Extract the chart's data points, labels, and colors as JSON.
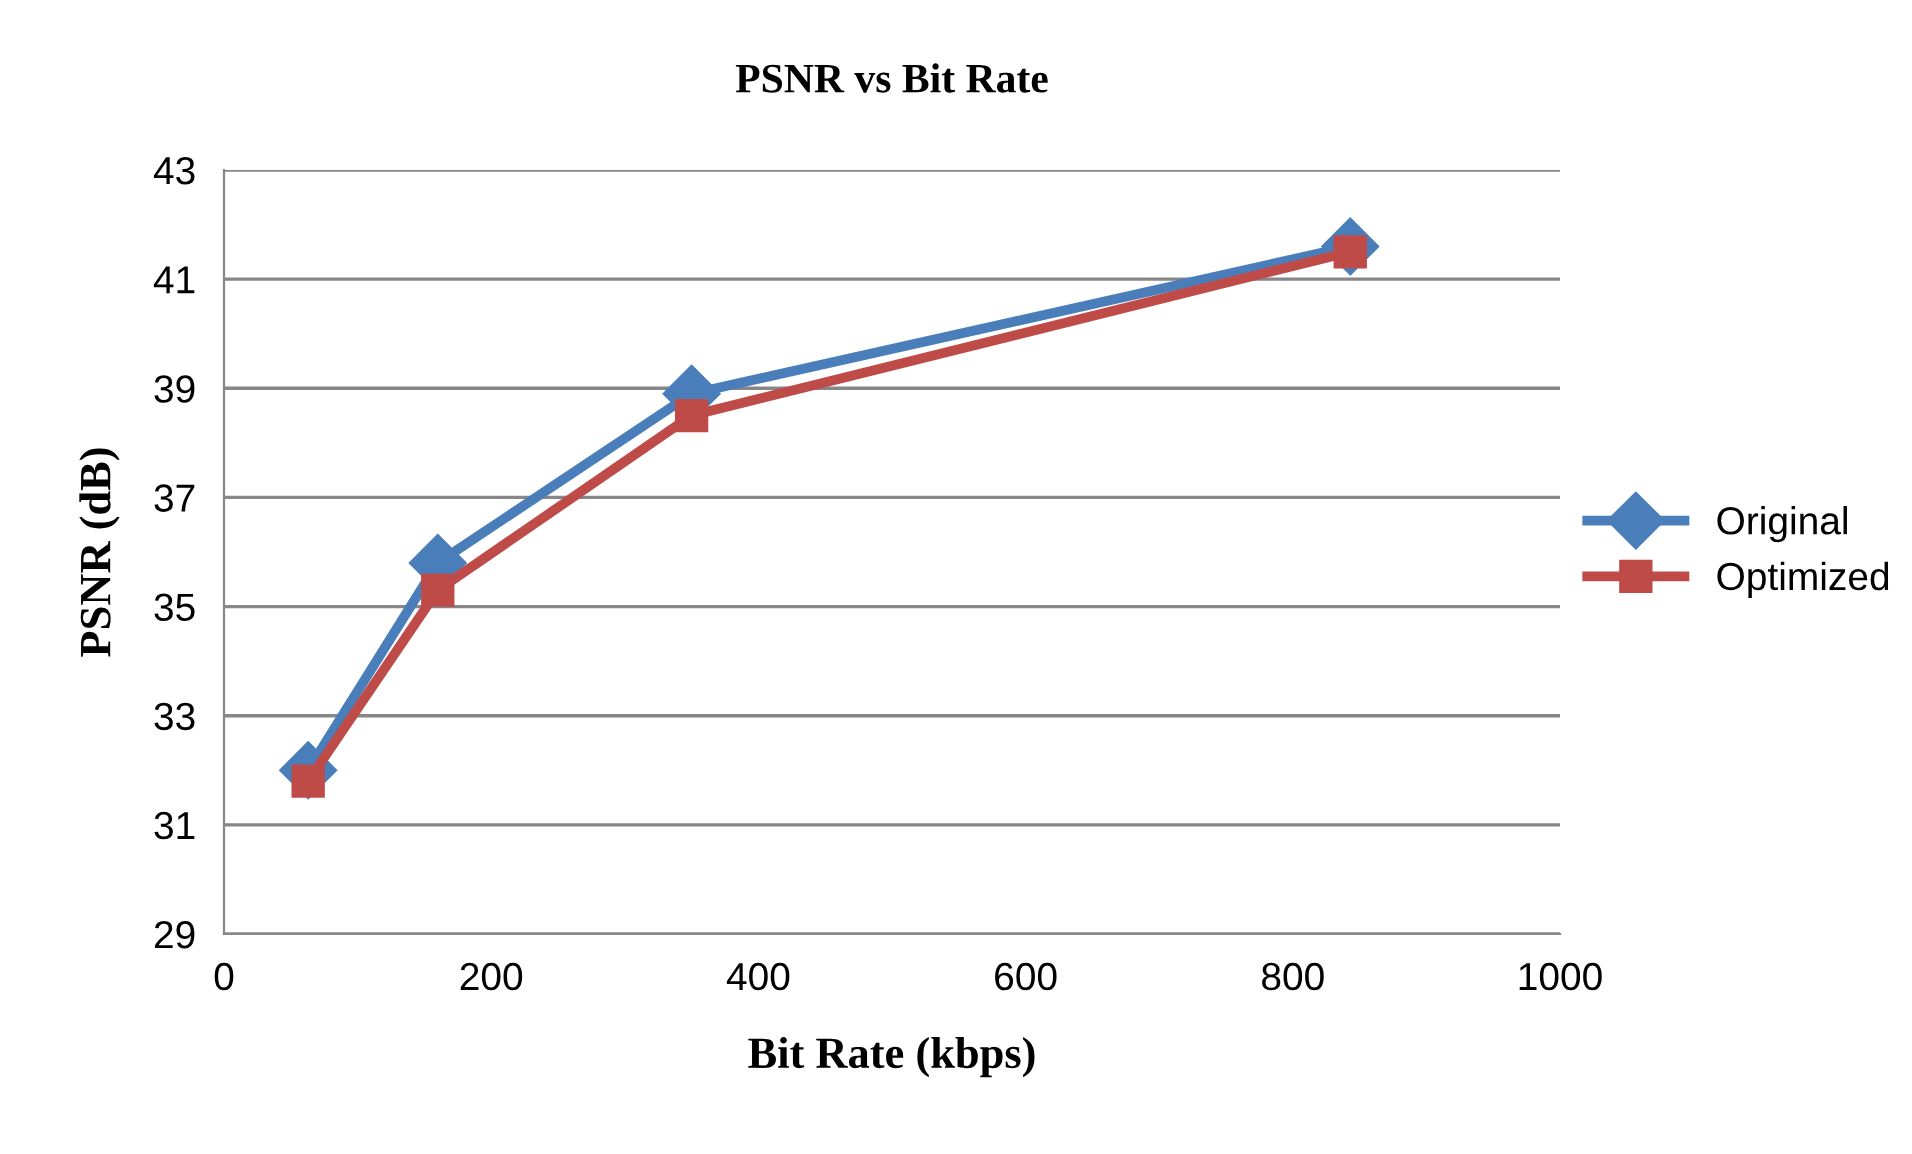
{
  "chart_data": {
    "type": "line",
    "title": "PSNR vs Bit Rate",
    "xlabel": "Bit Rate (kbps)",
    "ylabel": "PSNR (dB)",
    "x": [
      63,
      160,
      350,
      843
    ],
    "series": [
      {
        "name": "Original",
        "color": "#4a7ebb",
        "values": [
          32.0,
          35.8,
          38.9,
          41.6
        ],
        "marker": "diamond"
      },
      {
        "name": "Optimized",
        "color": "#be4b48",
        "values": [
          31.8,
          35.3,
          38.5,
          41.5
        ],
        "marker": "square"
      }
    ],
    "xlim": [
      0,
      1000
    ],
    "xticks": [
      0,
      200,
      400,
      600,
      800,
      1000
    ],
    "ylim": [
      29,
      43
    ],
    "yticks": [
      29,
      31,
      33,
      35,
      37,
      39,
      41,
      43
    ],
    "grid": "y",
    "legend": "right",
    "line_style": "solid"
  }
}
